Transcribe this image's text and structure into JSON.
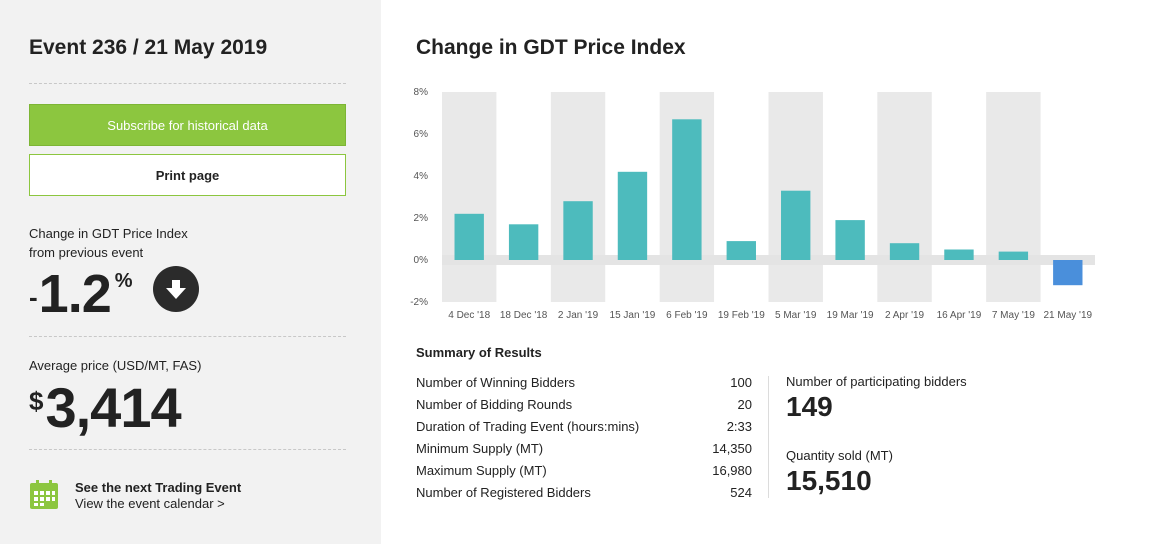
{
  "left": {
    "event_title": "Event 236 / 21 May 2019",
    "subscribe_label": "Subscribe for historical data",
    "print_label": "Print page",
    "change_label_line1": "Change in GDT Price Index",
    "change_label_line2": "from previous event",
    "change_sign": "-",
    "change_value": "1.2",
    "change_unit": "%",
    "avg_label": "Average price (USD/MT, FAS)",
    "avg_currency": "$",
    "avg_value": "3,414",
    "next_title": "See the next Trading Event",
    "next_link": "View the event calendar >",
    "icons": {
      "change_direction": "arrow-down-circle-icon",
      "calendar": "calendar-icon"
    },
    "colors": {
      "accent": "#8cc63f"
    }
  },
  "chart_title": "Change in GDT Price Index",
  "chart_data": {
    "type": "bar",
    "categories": [
      "4 Dec '18",
      "18 Dec '18",
      "2 Jan '19",
      "15 Jan '19",
      "6 Feb '19",
      "19 Feb '19",
      "5 Mar '19",
      "19 Mar '19",
      "2 Apr '19",
      "16 Apr '19",
      "7 May '19",
      "21 May '19"
    ],
    "values": [
      2.2,
      1.7,
      2.8,
      4.2,
      6.7,
      0.9,
      3.3,
      1.9,
      0.8,
      0.5,
      0.4,
      -1.2
    ],
    "y_ticks": [
      "8%",
      "6%",
      "4%",
      "2%",
      "0%",
      "-2%"
    ],
    "ylim": [
      -2,
      8
    ],
    "colors": {
      "positive": "#4dbbbd",
      "negative": "#4a8fdb"
    },
    "legend": "none",
    "grid": "alternating vertical bands"
  },
  "summary": {
    "title": "Summary of Results",
    "rows": [
      {
        "label": "Number of Winning Bidders",
        "value": "100"
      },
      {
        "label": "Number of Bidding Rounds",
        "value": "20"
      },
      {
        "label": "Duration of Trading Event (hours:mins)",
        "value": "2:33"
      },
      {
        "label": "Minimum Supply (MT)",
        "value": "14,350"
      },
      {
        "label": "Maximum Supply (MT)",
        "value": "16,980"
      },
      {
        "label": "Number of Registered Bidders",
        "value": "524"
      }
    ],
    "participating_label": "Number of participating bidders",
    "participating_value": "149",
    "sold_label": "Quantity sold (MT)",
    "sold_value": "15,510"
  }
}
